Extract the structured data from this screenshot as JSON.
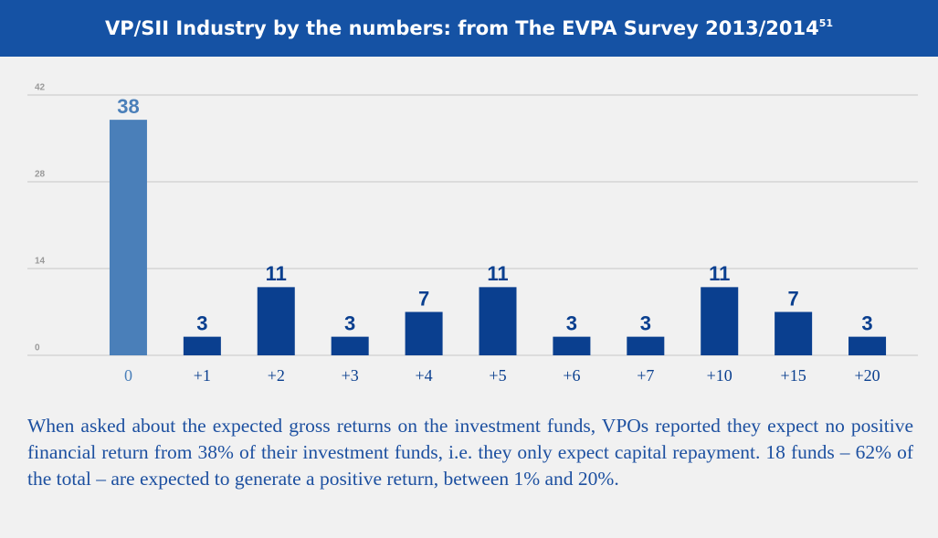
{
  "chart_data": {
    "type": "bar",
    "title": "VP/SII Industry by the numbers: from The EVPA Survey 2013/2014",
    "title_note": "51",
    "categories": [
      "0",
      "+1",
      "+2",
      "+3",
      "+4",
      "+5",
      "+6",
      "+7",
      "+10",
      "+15",
      "+20"
    ],
    "values": [
      38,
      3,
      11,
      3,
      7,
      11,
      3,
      3,
      11,
      7,
      3
    ],
    "colors": [
      "#4a7fb9",
      "#0a3f8f",
      "#0a3f8f",
      "#0a3f8f",
      "#0a3f8f",
      "#0a3f8f",
      "#0a3f8f",
      "#0a3f8f",
      "#0a3f8f",
      "#0a3f8f",
      "#0a3f8f"
    ],
    "ylim": [
      0,
      42
    ],
    "yticks": [
      0,
      14,
      28,
      42
    ],
    "grid": true
  },
  "text": "When asked about the expected gross returns on the investment funds, VPOs reported they expect no positive financial return from 38% of their investment funds, i.e. they only expect capital repayment. 18 funds – 62% of the total – are expected to generate a positive return, between 1% and 20%."
}
